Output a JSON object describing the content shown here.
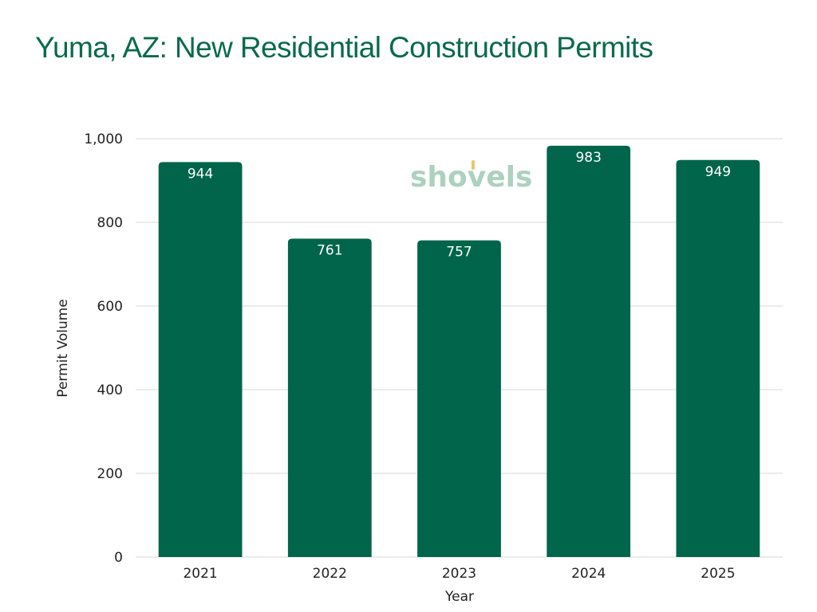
{
  "chart_data": {
    "type": "bar",
    "title": "Yuma, AZ: New Residential Construction Permits",
    "xlabel": "Year",
    "ylabel": "Permit Volume",
    "categories": [
      "2021",
      "2022",
      "2023",
      "2024",
      "2025"
    ],
    "values": [
      944,
      761,
      757,
      983,
      949
    ],
    "data_labels": [
      "944",
      "761",
      "757",
      "983",
      "949"
    ],
    "ylim": [
      0,
      1000
    ],
    "yticks": [
      0,
      200,
      400,
      600,
      800,
      1000
    ],
    "ytick_labels": [
      "0",
      "200",
      "400",
      "600",
      "800",
      "1,000"
    ],
    "grid": true,
    "bar_color": "#00654a",
    "title_color": "#0a6b48"
  },
  "watermark": {
    "text": "shovels",
    "accent_color": "#e8c86a"
  }
}
